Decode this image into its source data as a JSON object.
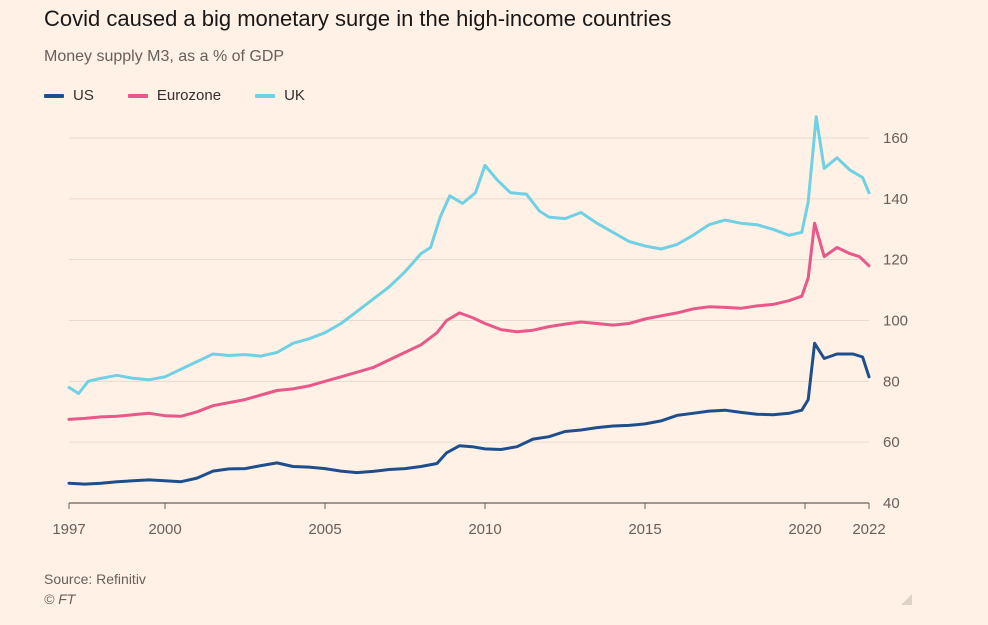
{
  "header": {
    "title": "Covid caused a big monetary surge in the high-income countries",
    "subtitle": "Money supply M3, as a % of GDP"
  },
  "footer": {
    "source": "Source: Refinitiv",
    "copyright": "© FT"
  },
  "colors": {
    "background": "#fff1e5",
    "grid": "#e6dbd1",
    "US": "#1f4e8c",
    "Eurozone": "#e8588a",
    "UK": "#6fd1e3"
  },
  "chart_data": {
    "type": "line",
    "title": "Covid caused a big monetary surge in the high-income countries",
    "subtitle": "Money supply M3, as a % of GDP",
    "xlabel": "",
    "ylabel": "",
    "xlim": [
      1997,
      2022
    ],
    "ylim": [
      40,
      170
    ],
    "y_ticks": [
      40,
      60,
      80,
      100,
      120,
      140,
      160
    ],
    "x_ticks": [
      1997,
      2000,
      2005,
      2010,
      2015,
      2020,
      2022
    ],
    "y_axis_position": "right",
    "grid": "horizontal",
    "legend_position": "top-left",
    "series": [
      {
        "name": "US",
        "color": "#1f4e8c",
        "points": [
          [
            1997.0,
            46.5
          ],
          [
            1997.5,
            46.2
          ],
          [
            1998.0,
            46.5
          ],
          [
            1998.5,
            47.0
          ],
          [
            1999.0,
            47.3
          ],
          [
            1999.5,
            47.6
          ],
          [
            2000.0,
            47.3
          ],
          [
            2000.5,
            47.0
          ],
          [
            2001.0,
            48.2
          ],
          [
            2001.5,
            50.5
          ],
          [
            2002.0,
            51.2
          ],
          [
            2002.5,
            51.3
          ],
          [
            2003.0,
            52.3
          ],
          [
            2003.5,
            53.2
          ],
          [
            2004.0,
            52.0
          ],
          [
            2004.5,
            51.8
          ],
          [
            2005.0,
            51.3
          ],
          [
            2005.5,
            50.5
          ],
          [
            2006.0,
            50.0
          ],
          [
            2006.5,
            50.4
          ],
          [
            2007.0,
            51.0
          ],
          [
            2007.5,
            51.3
          ],
          [
            2008.0,
            52.0
          ],
          [
            2008.5,
            53.0
          ],
          [
            2008.8,
            56.5
          ],
          [
            2009.2,
            58.8
          ],
          [
            2009.6,
            58.5
          ],
          [
            2010.0,
            57.8
          ],
          [
            2010.5,
            57.6
          ],
          [
            2011.0,
            58.5
          ],
          [
            2011.5,
            61.0
          ],
          [
            2012.0,
            61.8
          ],
          [
            2012.5,
            63.5
          ],
          [
            2013.0,
            64.0
          ],
          [
            2013.5,
            64.8
          ],
          [
            2014.0,
            65.3
          ],
          [
            2014.5,
            65.5
          ],
          [
            2015.0,
            66.0
          ],
          [
            2015.5,
            67.0
          ],
          [
            2016.0,
            68.8
          ],
          [
            2016.5,
            69.5
          ],
          [
            2017.0,
            70.2
          ],
          [
            2017.5,
            70.5
          ],
          [
            2018.0,
            69.8
          ],
          [
            2018.5,
            69.2
          ],
          [
            2019.0,
            69.0
          ],
          [
            2019.5,
            69.5
          ],
          [
            2019.9,
            70.5
          ],
          [
            2020.1,
            74.0
          ],
          [
            2020.3,
            92.5
          ],
          [
            2020.6,
            87.5
          ],
          [
            2021.0,
            89.0
          ],
          [
            2021.5,
            89.0
          ],
          [
            2021.8,
            88.0
          ],
          [
            2022.0,
            81.5
          ]
        ]
      },
      {
        "name": "Eurozone",
        "color": "#e8588a",
        "points": [
          [
            1997.0,
            67.5
          ],
          [
            1997.5,
            67.8
          ],
          [
            1998.0,
            68.3
          ],
          [
            1998.5,
            68.5
          ],
          [
            1999.0,
            69.0
          ],
          [
            1999.5,
            69.5
          ],
          [
            2000.0,
            68.7
          ],
          [
            2000.5,
            68.5
          ],
          [
            2001.0,
            70.0
          ],
          [
            2001.5,
            72.0
          ],
          [
            2002.0,
            73.0
          ],
          [
            2002.5,
            74.0
          ],
          [
            2003.0,
            75.5
          ],
          [
            2003.5,
            77.0
          ],
          [
            2004.0,
            77.5
          ],
          [
            2004.5,
            78.5
          ],
          [
            2005.0,
            80.0
          ],
          [
            2005.5,
            81.5
          ],
          [
            2006.0,
            83.0
          ],
          [
            2006.5,
            84.5
          ],
          [
            2007.0,
            87.0
          ],
          [
            2007.5,
            89.5
          ],
          [
            2008.0,
            92.0
          ],
          [
            2008.5,
            96.0
          ],
          [
            2008.8,
            100.0
          ],
          [
            2009.2,
            102.5
          ],
          [
            2009.6,
            101.0
          ],
          [
            2010.0,
            99.0
          ],
          [
            2010.5,
            97.0
          ],
          [
            2011.0,
            96.3
          ],
          [
            2011.5,
            96.8
          ],
          [
            2012.0,
            98.0
          ],
          [
            2012.5,
            98.8
          ],
          [
            2013.0,
            99.5
          ],
          [
            2013.5,
            99.0
          ],
          [
            2014.0,
            98.5
          ],
          [
            2014.5,
            99.0
          ],
          [
            2015.0,
            100.5
          ],
          [
            2015.5,
            101.5
          ],
          [
            2016.0,
            102.5
          ],
          [
            2016.5,
            103.8
          ],
          [
            2017.0,
            104.5
          ],
          [
            2017.5,
            104.3
          ],
          [
            2018.0,
            104.0
          ],
          [
            2018.5,
            104.8
          ],
          [
            2019.0,
            105.3
          ],
          [
            2019.5,
            106.5
          ],
          [
            2019.9,
            108.0
          ],
          [
            2020.1,
            114.0
          ],
          [
            2020.3,
            132.0
          ],
          [
            2020.6,
            121.0
          ],
          [
            2021.0,
            124.0
          ],
          [
            2021.4,
            122.0
          ],
          [
            2021.7,
            121.0
          ],
          [
            2022.0,
            118.0
          ]
        ]
      },
      {
        "name": "UK",
        "color": "#6fd1e3",
        "points": [
          [
            1997.0,
            78.0
          ],
          [
            1997.3,
            76.0
          ],
          [
            1997.6,
            80.0
          ],
          [
            1998.0,
            81.0
          ],
          [
            1998.5,
            82.0
          ],
          [
            1999.0,
            81.0
          ],
          [
            1999.5,
            80.5
          ],
          [
            2000.0,
            81.5
          ],
          [
            2000.5,
            84.0
          ],
          [
            2001.0,
            86.5
          ],
          [
            2001.5,
            89.0
          ],
          [
            2002.0,
            88.5
          ],
          [
            2002.5,
            88.8
          ],
          [
            2003.0,
            88.3
          ],
          [
            2003.5,
            89.5
          ],
          [
            2004.0,
            92.5
          ],
          [
            2004.5,
            94.0
          ],
          [
            2005.0,
            96.0
          ],
          [
            2005.5,
            99.0
          ],
          [
            2006.0,
            103.0
          ],
          [
            2006.5,
            107.0
          ],
          [
            2007.0,
            111.0
          ],
          [
            2007.5,
            116.0
          ],
          [
            2008.0,
            122.0
          ],
          [
            2008.3,
            124.0
          ],
          [
            2008.6,
            134.0
          ],
          [
            2008.9,
            141.0
          ],
          [
            2009.3,
            138.5
          ],
          [
            2009.7,
            142.0
          ],
          [
            2010.0,
            151.0
          ],
          [
            2010.4,
            146.0
          ],
          [
            2010.8,
            142.0
          ],
          [
            2011.3,
            141.5
          ],
          [
            2011.7,
            136.0
          ],
          [
            2012.0,
            134.0
          ],
          [
            2012.5,
            133.5
          ],
          [
            2013.0,
            135.5
          ],
          [
            2013.5,
            132.0
          ],
          [
            2014.0,
            129.0
          ],
          [
            2014.5,
            126.0
          ],
          [
            2015.0,
            124.5
          ],
          [
            2015.5,
            123.5
          ],
          [
            2016.0,
            125.0
          ],
          [
            2016.5,
            128.0
          ],
          [
            2017.0,
            131.5
          ],
          [
            2017.5,
            133.0
          ],
          [
            2018.0,
            132.0
          ],
          [
            2018.5,
            131.5
          ],
          [
            2019.0,
            130.0
          ],
          [
            2019.5,
            128.0
          ],
          [
            2019.9,
            129.0
          ],
          [
            2020.1,
            139.0
          ],
          [
            2020.35,
            167.0
          ],
          [
            2020.6,
            150.0
          ],
          [
            2021.0,
            153.5
          ],
          [
            2021.4,
            149.5
          ],
          [
            2021.8,
            147.0
          ],
          [
            2022.0,
            142.0
          ]
        ]
      }
    ]
  }
}
